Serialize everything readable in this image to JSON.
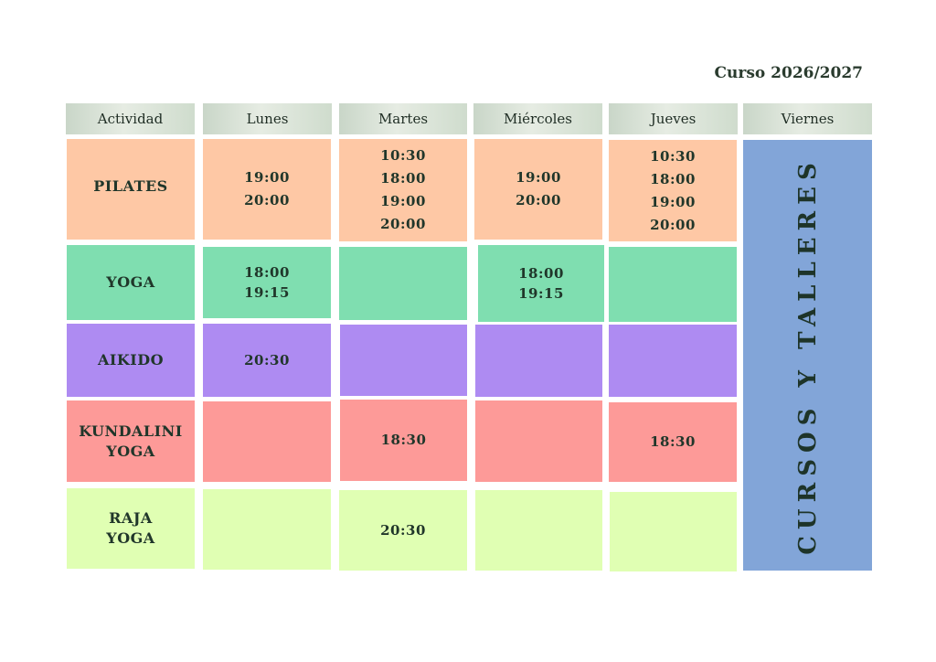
{
  "course_label": "Curso 2026/2027",
  "headers": [
    "Actividad",
    "Lunes",
    "Martes",
    "Miércoles",
    "Jueves",
    "Viernes"
  ],
  "friday_banner": "CURSOS Y TALLERES",
  "activities": {
    "pilates": "PILATES",
    "yoga": "YOGA",
    "aikido": "AIKIDO",
    "kundalini_1": "KUNDALINI",
    "kundalini_2": "YOGA",
    "raja_1": "RAJA",
    "raja_2": "YOGA"
  },
  "schedule": {
    "pilates": {
      "lunes": [
        "19:00",
        "20:00"
      ],
      "martes": [
        "10:30",
        "18:00",
        "19:00",
        "20:00"
      ],
      "miercoles": [
        "19:00",
        "20:00"
      ],
      "jueves": [
        "10:30",
        "18:00",
        "19:00",
        "20:00"
      ]
    },
    "yoga": {
      "lunes": [
        "18:00",
        "19:15"
      ],
      "miercoles": [
        "18:00",
        "19:15"
      ]
    },
    "aikido": {
      "lunes": [
        "20:30"
      ]
    },
    "kundalini": {
      "martes": [
        "18:30"
      ],
      "jueves": [
        "18:30"
      ]
    },
    "raja": {
      "martes": [
        "20:30"
      ]
    }
  },
  "colors": {
    "pilates": "#fec8a5",
    "yoga": "#7fdeb0",
    "aikido": "#ae8bf2",
    "kundalini": "#fd9a98",
    "raja": "#e0ffb3",
    "viernes": "#82a5d8",
    "header": "#d6e0d3",
    "text": "#1f3a2c"
  }
}
